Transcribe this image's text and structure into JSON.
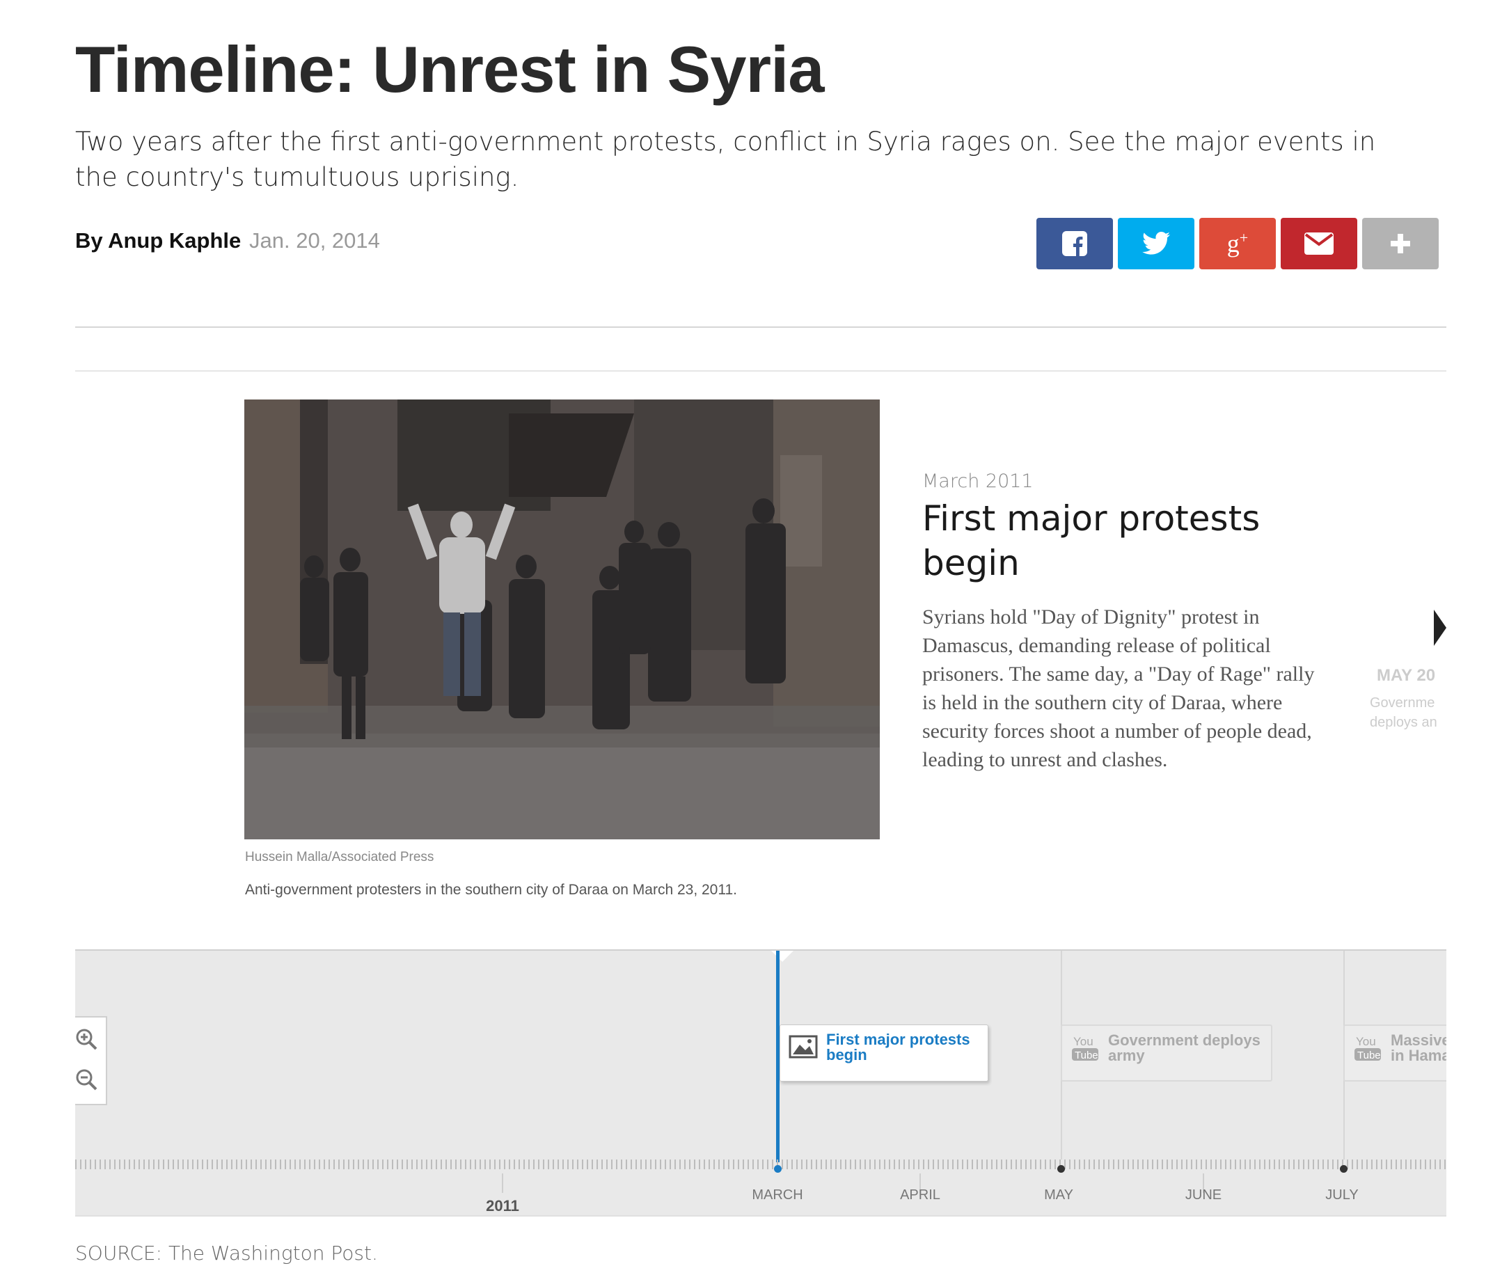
{
  "header": {
    "title": "Timeline: Unrest in Syria",
    "dek": "Two years after the first anti-government protests, conflict in Syria rages on. See the major events in the country's tumultuous uprising.",
    "byline": "By Anup Kaphle",
    "date": "Jan. 20, 2014"
  },
  "share": [
    {
      "name": "facebook",
      "icon": "facebook-icon",
      "color": "#3b5998"
    },
    {
      "name": "twitter",
      "icon": "twitter-icon",
      "color": "#00acee"
    },
    {
      "name": "google-plus",
      "icon": "google-plus-icon",
      "color": "#dd4b39"
    },
    {
      "name": "email",
      "icon": "envelope-icon",
      "color": "#c1272d"
    },
    {
      "name": "more",
      "icon": "plus-icon",
      "color": "#b3b3b3"
    }
  ],
  "slide": {
    "photo_credit": "Hussein Malla/Associated Press",
    "caption": "Anti-government protesters in the southern city of Daraa on March 23, 2011.",
    "date": "March 2011",
    "headline": "First major protests begin",
    "body": "Syrians hold \"Day of Dignity\" protest in Damascus, demanding release of political prisoners. The same day, a \"Day of Rage\" rally is held in the southern city of Daraa, where security forces shoot a number of people dead, leading to unrest and clashes."
  },
  "next_slide": {
    "date": "MAY 20",
    "body_line1": "Governme",
    "body_line2": "deploys an"
  },
  "timeline": {
    "markers": [
      {
        "line1": "First major protests",
        "line2": "begin",
        "icon": "photo-icon",
        "active": true
      },
      {
        "line1": "Government deploys",
        "line2": "army",
        "icon": "youtube-icon",
        "active": false
      },
      {
        "line1": "Massive",
        "line2": "in Hama",
        "icon": "youtube-icon",
        "active": false
      }
    ],
    "months": [
      "MARCH",
      "APRIL",
      "MAY",
      "JUNE",
      "JULY"
    ],
    "year": "2011"
  },
  "footer": {
    "source": "SOURCE: The Washington Post."
  }
}
